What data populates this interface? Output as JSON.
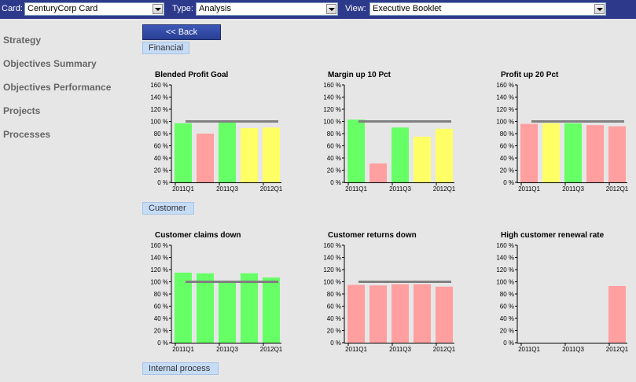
{
  "toolbar": {
    "card_label": "Card:",
    "card_value": "CenturyCorp Card",
    "type_label": "Type:",
    "type_value": "Analysis",
    "view_label": "View:",
    "view_value": "Executive Booklet"
  },
  "sidebar": {
    "items": [
      {
        "label": "Strategy"
      },
      {
        "label": "Objectives Summary"
      },
      {
        "label": "Objectives Performance"
      },
      {
        "label": "Projects"
      },
      {
        "label": "Processes"
      }
    ]
  },
  "back_button": "<< Back",
  "sections": [
    {
      "label": "Financial"
    },
    {
      "label": "Customer"
    },
    {
      "label": "Internal process"
    }
  ],
  "colors": {
    "green": "#66ff66",
    "red": "#ff9f9f",
    "yellow": "#ffff66",
    "target": "#808080"
  },
  "chart_data": [
    {
      "type": "bar",
      "title": "Blended Profit Goal",
      "categories": [
        "2011Q1",
        "2011Q2",
        "2011Q3",
        "2011Q4",
        "2012Q1"
      ],
      "tick_labels": [
        "2011Q1",
        "2011Q3",
        "2012Q1"
      ],
      "values": [
        97,
        80,
        98,
        89,
        90
      ],
      "colors": [
        "green",
        "red",
        "green",
        "yellow",
        "yellow"
      ],
      "target": 100,
      "ylim": [
        0,
        160
      ],
      "yticks": [
        "0 %",
        "20 %",
        "40 %",
        "60 %",
        "80 %",
        "100 %",
        "120 %",
        "140 %",
        "160 %"
      ]
    },
    {
      "type": "bar",
      "title": "Margin up 10 Pct",
      "categories": [
        "2011Q1",
        "2011Q2",
        "2011Q3",
        "2011Q4",
        "2012Q1"
      ],
      "tick_labels": [
        "2011Q1",
        "2011Q3",
        "2012Q1"
      ],
      "values": [
        103,
        31,
        90,
        75,
        88
      ],
      "colors": [
        "green",
        "red",
        "green",
        "yellow",
        "yellow"
      ],
      "target": 100,
      "ylim": [
        0,
        160
      ],
      "yticks": [
        "0 %",
        "20 %",
        "40 %",
        "60 %",
        "80 %",
        "100 %",
        "120 %",
        "140 %",
        "160 %"
      ]
    },
    {
      "type": "bar",
      "title": "Profit up 20 Pct",
      "categories": [
        "2011Q1",
        "2011Q2",
        "2011Q3",
        "2011Q4",
        "2012Q1"
      ],
      "tick_labels": [
        "2011Q1",
        "2011Q3",
        "2012Q1"
      ],
      "values": [
        96,
        97,
        97,
        94,
        92
      ],
      "colors": [
        "red",
        "yellow",
        "green",
        "red",
        "red"
      ],
      "target": 100,
      "ylim": [
        0,
        160
      ],
      "yticks": [
        "0 %",
        "20 %",
        "40 %",
        "60 %",
        "80 %",
        "100 %",
        "120 %",
        "140 %",
        "160 %"
      ]
    },
    {
      "type": "bar",
      "title": "Customer claims down",
      "categories": [
        "2011Q1",
        "2011Q2",
        "2011Q3",
        "2011Q4",
        "2012Q1"
      ],
      "tick_labels": [
        "2011Q1",
        "2011Q3",
        "2012Q1"
      ],
      "values": [
        115,
        114,
        100,
        114,
        107
      ],
      "colors": [
        "green",
        "green",
        "green",
        "green",
        "green"
      ],
      "target": 100,
      "ylim": [
        0,
        160
      ],
      "yticks": [
        "0 %",
        "20 %",
        "40 %",
        "60 %",
        "80 %",
        "100 %",
        "120 %",
        "140 %",
        "160 %"
      ]
    },
    {
      "type": "bar",
      "title": "Customer returns down",
      "categories": [
        "2011Q1",
        "2011Q2",
        "2011Q3",
        "2011Q4",
        "2012Q1"
      ],
      "tick_labels": [
        "2011Q1",
        "2011Q3",
        "2012Q1"
      ],
      "values": [
        95,
        94,
        96,
        96,
        92
      ],
      "colors": [
        "red",
        "red",
        "red",
        "red",
        "red"
      ],
      "target": 100,
      "ylim": [
        0,
        160
      ],
      "yticks": [
        "0 %",
        "20 %",
        "40 %",
        "60 %",
        "80 %",
        "100 %",
        "120 %",
        "140 %",
        "160 %"
      ]
    },
    {
      "type": "bar",
      "title": "High customer renewal rate",
      "categories": [
        "2011Q1",
        "2011Q2",
        "2011Q3",
        "2011Q4",
        "2012Q1"
      ],
      "tick_labels": [
        "2011Q1",
        "2011Q3",
        "2012Q1"
      ],
      "values": [
        null,
        null,
        null,
        null,
        93
      ],
      "colors": [
        "red",
        "red",
        "red",
        "red",
        "red"
      ],
      "target": null,
      "ylim": [
        0,
        160
      ],
      "yticks": [
        "0 %",
        "20 %",
        "40 %",
        "60 %",
        "80 %",
        "100 %",
        "120 %",
        "140 %",
        "160 %"
      ]
    }
  ]
}
